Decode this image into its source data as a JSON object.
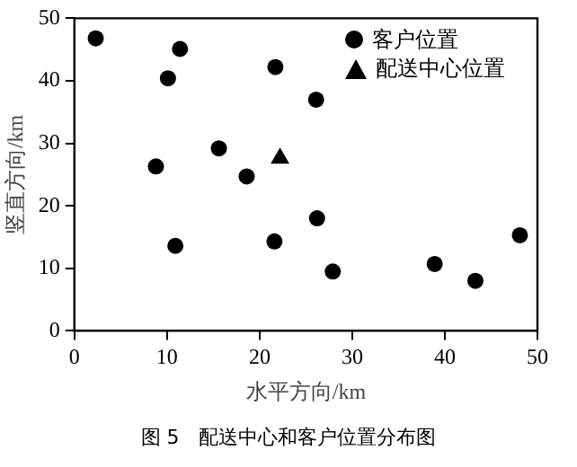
{
  "chart_data": {
    "type": "scatter",
    "xlabel": "水平方向/km",
    "ylabel": "竖直方向/km",
    "xlim": [
      0,
      50
    ],
    "ylim": [
      0,
      50
    ],
    "xticks": [
      0,
      10,
      20,
      30,
      40,
      50
    ],
    "yticks": [
      0,
      10,
      20,
      30,
      40,
      50
    ],
    "grid": false,
    "legend": "top right",
    "annotations": [
      "图 5　配送中心和客户位置分布图"
    ],
    "series": [
      {
        "name": "客户位置",
        "color": "#000000",
        "marker": "circle",
        "x": [
          2.3,
          11.4,
          10.1,
          21.7,
          26.1,
          8.8,
          15.6,
          18.6,
          10.9,
          21.6,
          26.2,
          27.9,
          38.9,
          43.3,
          48.1
        ],
        "values": [
          46.8,
          45.1,
          40.4,
          42.2,
          37,
          26.3,
          29.2,
          24.7,
          13.6,
          14.3,
          18,
          9.5,
          10.7,
          8,
          15.3
        ]
      },
      {
        "name": "配送中心位置",
        "color": "#000000",
        "marker": "triangle",
        "x": [
          22.2
        ],
        "values": [
          27.6
        ]
      }
    ]
  }
}
